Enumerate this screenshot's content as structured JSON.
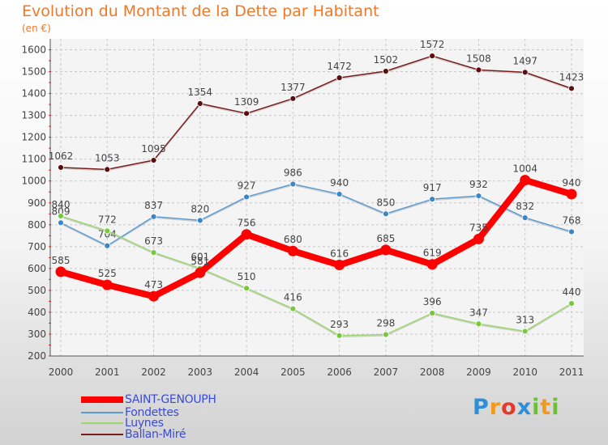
{
  "header": {
    "title": "Evolution du Montant de la Dette par Habitant",
    "unit": "(en €)"
  },
  "chart_data": {
    "type": "line",
    "title": "Evolution du Montant de la Dette par Habitant",
    "ylabel": "(en €)",
    "x": [
      "2000",
      "2001",
      "2002",
      "2003",
      "2004",
      "2005",
      "2006",
      "2007",
      "2008",
      "2009",
      "2010",
      "2011"
    ],
    "yticks": [
      "200",
      "300",
      "400",
      "500",
      "600",
      "700",
      "800",
      "900",
      "1000",
      "1100",
      "1200",
      "1300",
      "1400",
      "1500",
      "1600"
    ],
    "ylim": [
      200,
      1650
    ],
    "grid": true,
    "legend": "bottom-left",
    "series": [
      {
        "name": "Ballan-Miré",
        "color": "#7a1c1c",
        "dot": "#5a0f0f",
        "values": [
          1062,
          1053,
          1095,
          1354,
          1309,
          1377,
          1472,
          1502,
          1572,
          1508,
          1497,
          1423
        ]
      },
      {
        "name": "Fondettes",
        "color": "#5b9bd1",
        "dot": "#3d86c6",
        "values": [
          809,
          704,
          837,
          820,
          927,
          986,
          940,
          850,
          917,
          932,
          832,
          768
        ]
      },
      {
        "name": "Luynes",
        "color": "#9bd66b",
        "dot": "#78c83c",
        "values": [
          840,
          772,
          673,
          601,
          510,
          416,
          293,
          298,
          396,
          347,
          313,
          440
        ]
      },
      {
        "name": "SAINT-GENOUPH",
        "color": "#ff0000",
        "dot": "#ff0000",
        "values": [
          585,
          525,
          473,
          581,
          756,
          680,
          616,
          685,
          619,
          735,
          1004,
          940
        ]
      }
    ]
  },
  "legend": {
    "items": [
      {
        "label": "SAINT-GENOUPH",
        "color": "#ff0000"
      },
      {
        "label": "Fondettes",
        "color": "#5b9bd1"
      },
      {
        "label": "Luynes",
        "color": "#9bd66b"
      },
      {
        "label": "Ballan-Miré",
        "color": "#7a1c1c"
      }
    ]
  },
  "logo": {
    "letters": [
      "P",
      "r",
      "o",
      "x",
      "i",
      "t",
      "i"
    ],
    "colors": [
      "#2d8fd8",
      "#f39a1e",
      "#e23b2a",
      "#2d8fd8",
      "#6cbf3b",
      "#f39a1e",
      "#6cbf3b"
    ]
  }
}
